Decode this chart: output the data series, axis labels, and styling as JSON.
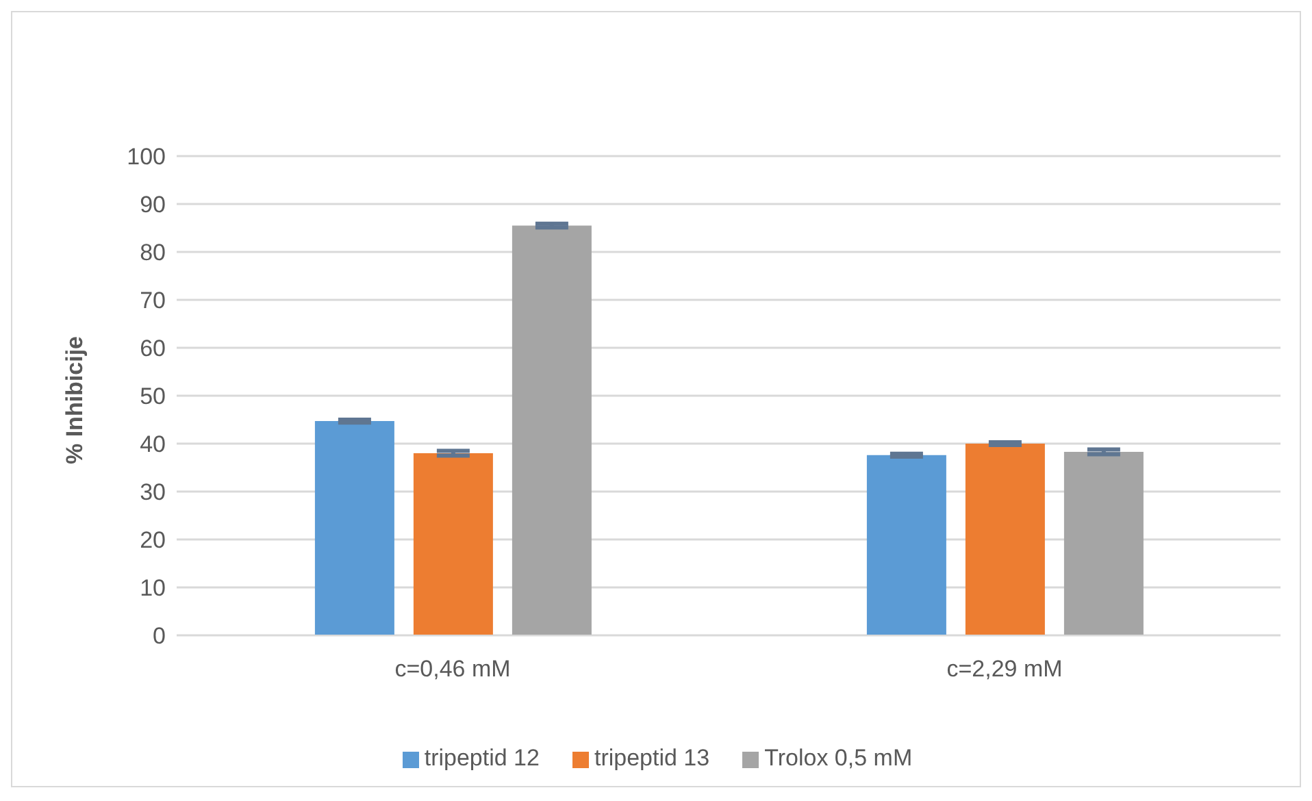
{
  "chart_data": {
    "type": "bar",
    "ylabel": "% Inhibicije",
    "categories": [
      "c=0,46 mM",
      "c=2,29 mM"
    ],
    "series": [
      {
        "name": "tripeptid 12",
        "color": "#5b9bd5",
        "values": [
          44.7,
          37.6
        ],
        "errors": [
          0.3,
          0.3
        ]
      },
      {
        "name": "tripeptid 13",
        "color": "#ed7d31",
        "values": [
          38,
          40
        ],
        "errors": [
          0.5,
          0.3
        ]
      },
      {
        "name": "Trolox 0,5 mM",
        "color": "#a5a5a5",
        "values": [
          85.5,
          38.3
        ],
        "errors": [
          0.4,
          0.5
        ]
      }
    ],
    "ylim": [
      0,
      100
    ],
    "yticks": [
      0,
      10,
      20,
      30,
      40,
      50,
      60,
      70,
      80,
      90,
      100
    ],
    "grid": "y",
    "legend": "bottom"
  }
}
